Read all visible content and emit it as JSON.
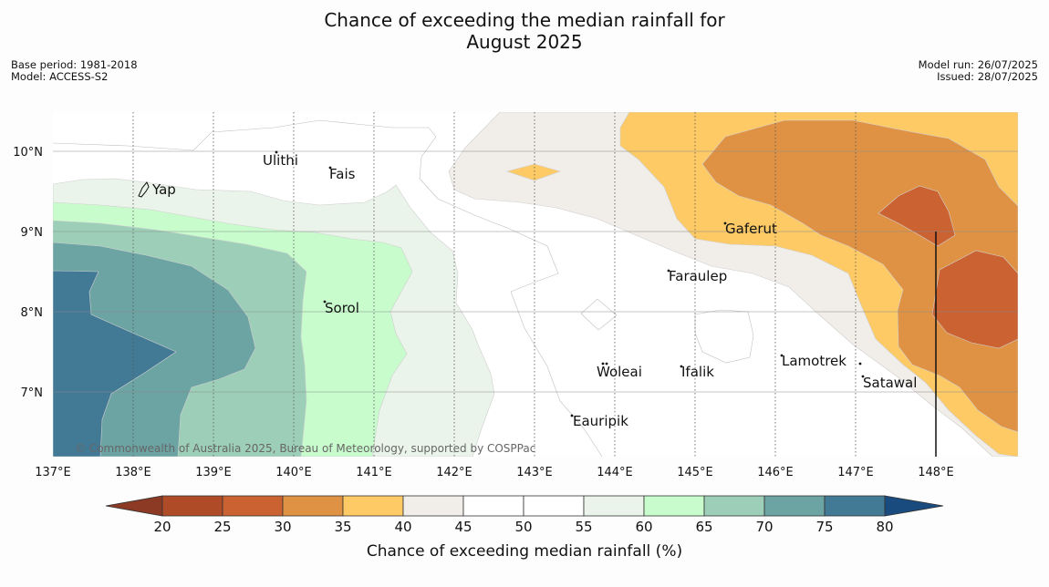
{
  "header": {
    "title_line1": "Chance of exceeding the median rainfall for",
    "title_line2": "August 2025",
    "base_period_label": "Base period:",
    "base_period": "1981-2018",
    "model_label": "Model:",
    "model": "ACCESS-S2",
    "model_run_label": "Model run:",
    "model_run": "26/07/2025",
    "issued_label": "Issued:",
    "issued": "28/07/2025"
  },
  "map": {
    "lat_labels": [
      "10°N",
      "9°N",
      "8°N",
      "7°N"
    ],
    "lon_labels": [
      "137°E",
      "138°E",
      "139°E",
      "140°E",
      "141°E",
      "142°E",
      "143°E",
      "144°E",
      "145°E",
      "146°E",
      "147°E",
      "148°E"
    ],
    "places": {
      "ulithi": "Ulithi",
      "fais": "Fais",
      "yap": "Yap",
      "gaferut": "Gaferut",
      "faraulep": "Faraulep",
      "sorol": "Sorol",
      "woleai": "Woleai",
      "ifalik": "Ifalik",
      "lamotrek": "Lamotrek",
      "satawal": "Satawal",
      "eauripik": "Eauripik"
    },
    "credit": "© Commonwealth of Australia 2025, Bureau of Meteorology, supported by COSPPac"
  },
  "legend": {
    "ticks": [
      "20",
      "25",
      "30",
      "35",
      "40",
      "45",
      "50",
      "55",
      "60",
      "65",
      "70",
      "75",
      "80"
    ],
    "title": "Chance of exceeding median rainfall (%)",
    "colors": {
      "under": "#8c3a24",
      "b20_25": "#b04b27",
      "b25_30": "#cb6232",
      "b30_35": "#e09244",
      "b35_40": "#fdca65",
      "b40_45": "#f1ede8",
      "b45_50": "#ffffff",
      "b50_55": "#ffffff",
      "b55_60": "#eaf4ea",
      "b60_65": "#c9fccc",
      "b65_70": "#9dcfb8",
      "b70_75": "#6ca3a3",
      "b75_80": "#427a96",
      "over": "#1a4b7e"
    }
  }
}
